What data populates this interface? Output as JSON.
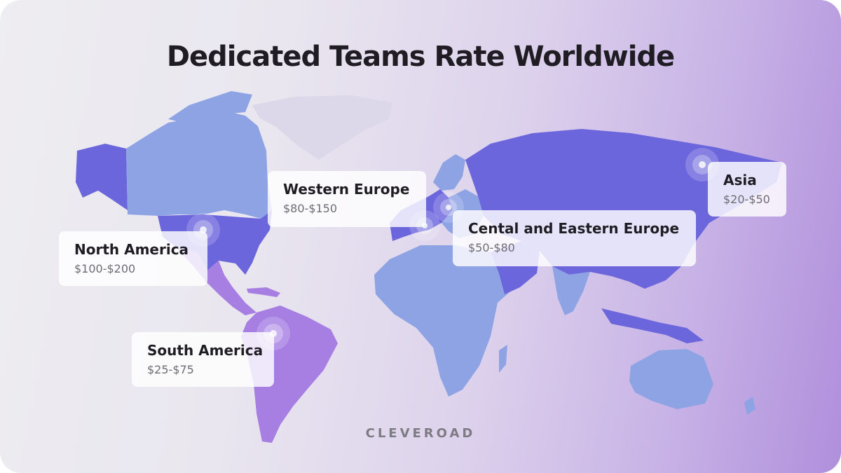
{
  "title": "Dedicated Teams Rate Worldwide",
  "brand": "CLEVEROAD",
  "colors": {
    "north_america": "#6c66dc",
    "canada": "#8ea3e4",
    "central_america": "#a77fe3",
    "south_america": "#a77fe3",
    "greenland": "#dcd8ea",
    "western_europe": "#6c66dc",
    "eastern_europe": "#8ea3e4",
    "russia_asia": "#6c66dc",
    "africa_mideast": "#8ea3e4",
    "australia": "#8ea3e4"
  },
  "callouts": [
    {
      "id": "north_america",
      "region": "North America",
      "rate": "$100-$200"
    },
    {
      "id": "south_america",
      "region": "South America",
      "rate": "$25-$75"
    },
    {
      "id": "western_europe",
      "region": "Western Europe",
      "rate": "$80-$150"
    },
    {
      "id": "central_eastern_europe",
      "region": "Cental and Eastern Europe",
      "rate": "$50-$80"
    },
    {
      "id": "asia",
      "region": "Asia",
      "rate": "$20-$50"
    }
  ]
}
